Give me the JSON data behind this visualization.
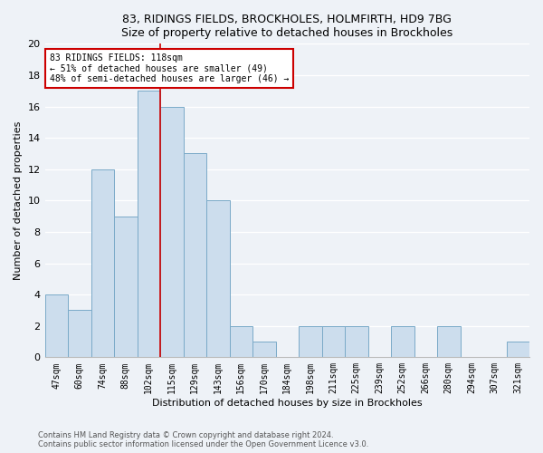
{
  "title1": "83, RIDINGS FIELDS, BROCKHOLES, HOLMFIRTH, HD9 7BG",
  "title2": "Size of property relative to detached houses in Brockholes",
  "xlabel": "Distribution of detached houses by size in Brockholes",
  "ylabel": "Number of detached properties",
  "categories": [
    "47sqm",
    "60sqm",
    "74sqm",
    "88sqm",
    "102sqm",
    "115sqm",
    "129sqm",
    "143sqm",
    "156sqm",
    "170sqm",
    "184sqm",
    "198sqm",
    "211sqm",
    "225sqm",
    "239sqm",
    "252sqm",
    "266sqm",
    "280sqm",
    "294sqm",
    "307sqm",
    "321sqm"
  ],
  "values": [
    4,
    3,
    12,
    9,
    17,
    16,
    13,
    10,
    2,
    1,
    0,
    2,
    2,
    2,
    0,
    2,
    0,
    2,
    0,
    0,
    1
  ],
  "bar_color": "#ccdded",
  "bar_edge_color": "#7aaac8",
  "vline_color": "#cc0000",
  "vline_x": 4.5,
  "annotation_text": "83 RIDINGS FIELDS: 118sqm\n← 51% of detached houses are smaller (49)\n48% of semi-detached houses are larger (46) →",
  "annotation_box_color": "#ffffff",
  "annotation_box_edge": "#cc0000",
  "ylim": [
    0,
    20
  ],
  "yticks": [
    0,
    2,
    4,
    6,
    8,
    10,
    12,
    14,
    16,
    18,
    20
  ],
  "footer1": "Contains HM Land Registry data © Crown copyright and database right 2024.",
  "footer2": "Contains public sector information licensed under the Open Government Licence v3.0.",
  "background_color": "#eef2f7",
  "plot_background_color": "#eef2f7",
  "grid_color": "#ffffff",
  "title_fontsize": 9,
  "xlabel_fontsize": 8,
  "ylabel_fontsize": 8,
  "tick_fontsize": 7,
  "annotation_fontsize": 7,
  "footer_fontsize": 6
}
